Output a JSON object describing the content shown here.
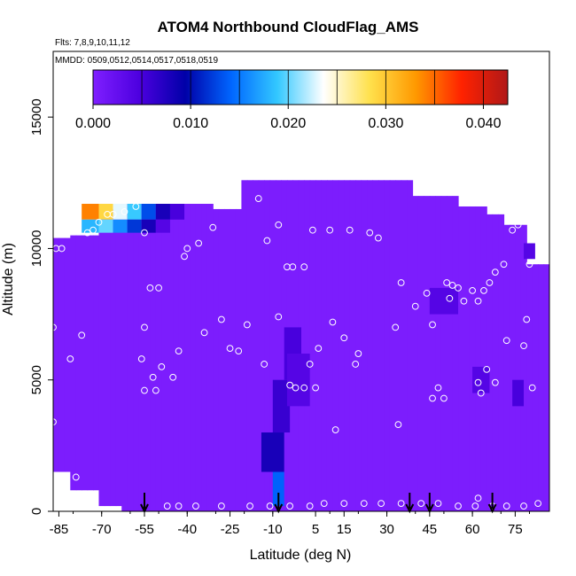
{
  "chart_data": {
    "type": "heatmap",
    "title": "ATOM4 Northbound CloudFlag_AMS",
    "flights_note": "Flts: 7,8,9,10,11,12",
    "dates_note": "MMDD: 0509,0512,0514,0517,0518,0519",
    "xlabel": "Latitude (deg N)",
    "ylabel": "Altitude (m)",
    "xlim": [
      -87,
      87
    ],
    "ylim": [
      0,
      17500
    ],
    "x_ticks": [
      -85,
      -70,
      -55,
      -40,
      -25,
      -10,
      5,
      15,
      30,
      45,
      60,
      75
    ],
    "y_ticks": [
      0,
      5000,
      10000,
      15000
    ],
    "colorbar": {
      "min": 0,
      "max": 0.0425,
      "ticks": [
        0.0,
        0.01,
        0.02,
        0.03,
        0.04
      ],
      "tick_labels": [
        "0.000",
        "0.010",
        "0.020",
        "0.030",
        "0.040"
      ],
      "colors": [
        "#7f1fff",
        "#4d00e0",
        "#0000a8",
        "#0066ff",
        "#33c8ff",
        "#ffffff",
        "#ffe14d",
        "#ff9900",
        "#ff2200",
        "#b01818"
      ]
    },
    "background_value": 0.0003,
    "high_cells": [
      {
        "x0": -77,
        "x1": -71,
        "y0": 11100,
        "y1": 11700,
        "v": 0.034
      },
      {
        "x0": -71,
        "x1": -66,
        "y0": 11100,
        "y1": 11700,
        "v": 0.029
      },
      {
        "x0": -66,
        "x1": -61,
        "y0": 11100,
        "y1": 11700,
        "v": 0.023
      },
      {
        "x0": -61,
        "x1": -56,
        "y0": 11100,
        "y1": 11700,
        "v": 0.019
      },
      {
        "x0": -56,
        "x1": -51,
        "y0": 11100,
        "y1": 11700,
        "v": 0.013
      },
      {
        "x0": -51,
        "x1": -46,
        "y0": 11100,
        "y1": 11700,
        "v": 0.008
      },
      {
        "x0": -46,
        "x1": -41,
        "y0": 11100,
        "y1": 11700,
        "v": 0.005
      },
      {
        "x0": -77,
        "x1": -71,
        "y0": 10600,
        "y1": 11100,
        "v": 0.018
      },
      {
        "x0": -71,
        "x1": -66,
        "y0": 10600,
        "y1": 11100,
        "v": 0.02
      },
      {
        "x0": -66,
        "x1": -61,
        "y0": 10600,
        "y1": 11100,
        "v": 0.016
      },
      {
        "x0": -61,
        "x1": -56,
        "y0": 10600,
        "y1": 11100,
        "v": 0.012
      },
      {
        "x0": -56,
        "x1": -51,
        "y0": 10600,
        "y1": 11100,
        "v": 0.008
      },
      {
        "x0": -51,
        "x1": -46,
        "y0": 10600,
        "y1": 11100,
        "v": 0.004
      },
      {
        "x0": -10,
        "x1": -6,
        "y0": 200,
        "y1": 1500,
        "v": 0.014
      },
      {
        "x0": -14,
        "x1": -6,
        "y0": 1500,
        "y1": 3000,
        "v": 0.008
      },
      {
        "x0": -10,
        "x1": -4,
        "y0": 3000,
        "y1": 5000,
        "v": 0.006
      },
      {
        "x0": -6,
        "x1": 0,
        "y0": 5000,
        "y1": 7000,
        "v": 0.005
      },
      {
        "x0": -5,
        "x1": 3,
        "y0": 4000,
        "y1": 6000,
        "v": 0.004
      },
      {
        "x0": 45,
        "x1": 55,
        "y0": 7500,
        "y1": 8500,
        "v": 0.004
      },
      {
        "x0": 60,
        "x1": 66,
        "y0": 4500,
        "y1": 5500,
        "v": 0.004
      },
      {
        "x0": 74,
        "x1": 78,
        "y0": 4000,
        "y1": 5000,
        "v": 0.005
      },
      {
        "x0": 78,
        "x1": 82,
        "y0": 9600,
        "y1": 10200,
        "v": 0.004
      }
    ],
    "flight_points": [
      {
        "x": -87,
        "y": 7000
      },
      {
        "x": -86,
        "y": 10000
      },
      {
        "x": -84,
        "y": 10000
      },
      {
        "x": -87,
        "y": 3400
      },
      {
        "x": -81,
        "y": 5800
      },
      {
        "x": -79,
        "y": 1300
      },
      {
        "x": -77,
        "y": 6700
      },
      {
        "x": -75,
        "y": 10600
      },
      {
        "x": -73,
        "y": 10700
      },
      {
        "x": -71,
        "y": 11000
      },
      {
        "x": -68,
        "y": 11300
      },
      {
        "x": -66,
        "y": 11300
      },
      {
        "x": -62,
        "y": 11400
      },
      {
        "x": -58,
        "y": 11600
      },
      {
        "x": -55,
        "y": 10600
      },
      {
        "x": -53,
        "y": 8500
      },
      {
        "x": -50,
        "y": 8500
      },
      {
        "x": -55,
        "y": 7000
      },
      {
        "x": -56,
        "y": 5800
      },
      {
        "x": -55,
        "y": 4600
      },
      {
        "x": -51,
        "y": 4600
      },
      {
        "x": -52,
        "y": 5100
      },
      {
        "x": -49,
        "y": 5500
      },
      {
        "x": -45,
        "y": 5100
      },
      {
        "x": -43,
        "y": 6100
      },
      {
        "x": -41,
        "y": 9700
      },
      {
        "x": -40,
        "y": 10000
      },
      {
        "x": -36,
        "y": 10200
      },
      {
        "x": -34,
        "y": 6800
      },
      {
        "x": -31,
        "y": 10800
      },
      {
        "x": -28,
        "y": 7300
      },
      {
        "x": -25,
        "y": 6200
      },
      {
        "x": -22,
        "y": 6100
      },
      {
        "x": -19,
        "y": 7100
      },
      {
        "x": -15,
        "y": 11900
      },
      {
        "x": -12,
        "y": 10300
      },
      {
        "x": -8,
        "y": 10900
      },
      {
        "x": -13,
        "y": 5600
      },
      {
        "x": -8,
        "y": 7400
      },
      {
        "x": -5,
        "y": 9300
      },
      {
        "x": -3,
        "y": 9300
      },
      {
        "x": 1,
        "y": 9300
      },
      {
        "x": -4,
        "y": 4800
      },
      {
        "x": -2,
        "y": 4700
      },
      {
        "x": 1,
        "y": 4700
      },
      {
        "x": 3,
        "y": 5600
      },
      {
        "x": 6,
        "y": 6200
      },
      {
        "x": 5,
        "y": 4700
      },
      {
        "x": 4,
        "y": 10700
      },
      {
        "x": 10,
        "y": 10700
      },
      {
        "x": 11,
        "y": 7200
      },
      {
        "x": 12,
        "y": 3100
      },
      {
        "x": 15,
        "y": 6600
      },
      {
        "x": 17,
        "y": 10700
      },
      {
        "x": 19,
        "y": 5600
      },
      {
        "x": 20,
        "y": 6000
      },
      {
        "x": 24,
        "y": 10600
      },
      {
        "x": 27,
        "y": 10400
      },
      {
        "x": 33,
        "y": 7000
      },
      {
        "x": 35,
        "y": 8700
      },
      {
        "x": 34,
        "y": 3300
      },
      {
        "x": 40,
        "y": 7800
      },
      {
        "x": 44,
        "y": 8300
      },
      {
        "x": 46,
        "y": 7100
      },
      {
        "x": 46,
        "y": 4300
      },
      {
        "x": 48,
        "y": 4700
      },
      {
        "x": 50,
        "y": 4300
      },
      {
        "x": 51,
        "y": 8700
      },
      {
        "x": 53,
        "y": 8600
      },
      {
        "x": 55,
        "y": 8500
      },
      {
        "x": 52,
        "y": 8100
      },
      {
        "x": 57,
        "y": 8000
      },
      {
        "x": 60,
        "y": 8400
      },
      {
        "x": 62,
        "y": 4900
      },
      {
        "x": 63,
        "y": 4500
      },
      {
        "x": 65,
        "y": 5400
      },
      {
        "x": 68,
        "y": 4900
      },
      {
        "x": 66,
        "y": 8700
      },
      {
        "x": 68,
        "y": 9100
      },
      {
        "x": 71,
        "y": 9400
      },
      {
        "x": 72,
        "y": 6500
      },
      {
        "x": 74,
        "y": 10700
      },
      {
        "x": 76,
        "y": 10900
      },
      {
        "x": 78,
        "y": 6300
      },
      {
        "x": 79,
        "y": 7300
      },
      {
        "x": 80,
        "y": 9400
      },
      {
        "x": 81,
        "y": 4700
      },
      {
        "x": 62,
        "y": 8000
      },
      {
        "x": 64,
        "y": 8400
      },
      {
        "x": -47,
        "y": 200
      },
      {
        "x": -43,
        "y": 200
      },
      {
        "x": -37,
        "y": 200
      },
      {
        "x": -28,
        "y": 200
      },
      {
        "x": -18,
        "y": 200
      },
      {
        "x": -11,
        "y": 200
      },
      {
        "x": -4,
        "y": 200
      },
      {
        "x": 3,
        "y": 200
      },
      {
        "x": 8,
        "y": 300
      },
      {
        "x": 15,
        "y": 300
      },
      {
        "x": 22,
        "y": 300
      },
      {
        "x": 28,
        "y": 300
      },
      {
        "x": 35,
        "y": 300
      },
      {
        "x": 42,
        "y": 300
      },
      {
        "x": 48,
        "y": 300
      },
      {
        "x": 55,
        "y": 200
      },
      {
        "x": 61,
        "y": 200
      },
      {
        "x": 62,
        "y": 500
      },
      {
        "x": 67,
        "y": 200
      },
      {
        "x": 72,
        "y": 200
      },
      {
        "x": 78,
        "y": 200
      },
      {
        "x": 83,
        "y": 300
      }
    ],
    "arrows_x": [
      -55,
      -8,
      38,
      45,
      67
    ]
  }
}
